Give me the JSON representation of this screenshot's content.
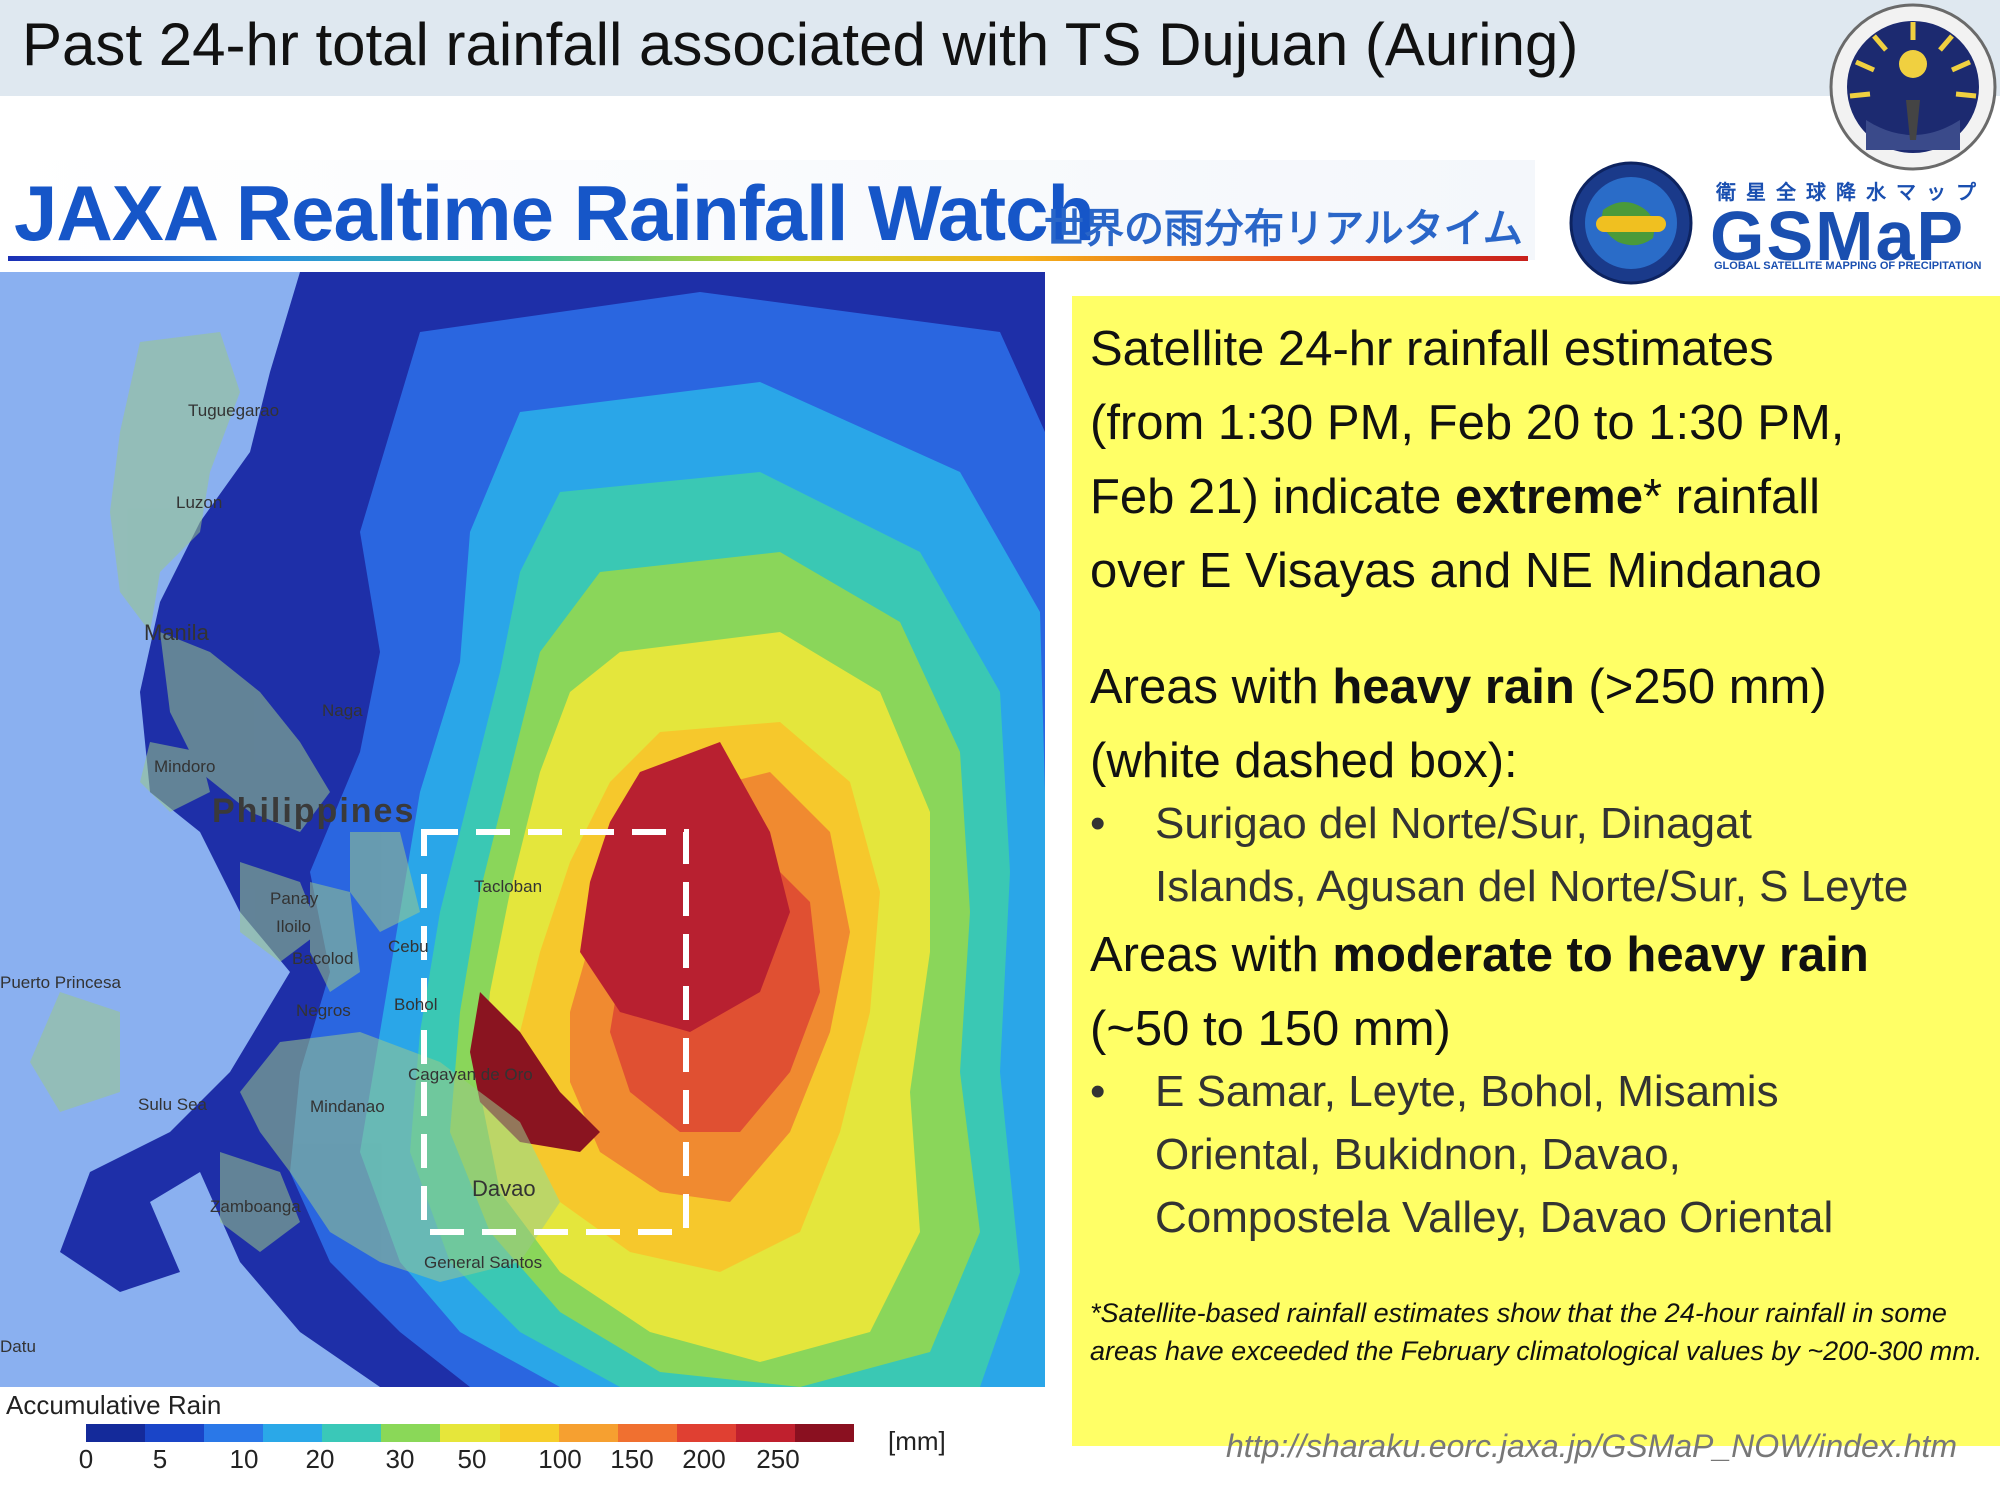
{
  "header": {
    "title": "Past 24-hr total rainfall associated with TS Dujuan (Auring)"
  },
  "jaxa_banner": {
    "title": "JAXA Realtime Rainfall Watch",
    "japanese_title": "世界の雨分布リアルタイム"
  },
  "gsmap_logo": {
    "japanese_caption": "衛星全球降水マップ",
    "wordmark": "GSMaP",
    "subtitle": "GLOBAL SATELLITE MAPPING OF PRECIPITATION"
  },
  "map": {
    "place_labels": [
      "Tuguegarao",
      "Luzon",
      "Manila",
      "Naga",
      "Mindoro",
      "Philippines",
      "Panay",
      "Iloilo",
      "Bacolod",
      "Cebu",
      "Tacloban",
      "Bohol",
      "Negros",
      "Puerto Princesa",
      "Sulu Sea",
      "Mindanao",
      "Cagayan de Oro",
      "Davao",
      "Zamboanga",
      "General Santos",
      "Datu"
    ],
    "box_note": "white dashed box"
  },
  "legend": {
    "title": "Accumulative Rain",
    "ticks": [
      "0",
      "5",
      "10",
      "20",
      "30",
      "50",
      "100",
      "150",
      "200",
      "250"
    ],
    "unit": "[mm]",
    "colors": [
      "#142a9a",
      "#1a45c8",
      "#2a78e8",
      "#2aa8e8",
      "#3ac8b8",
      "#8ad858",
      "#e6e63a",
      "#f6ce2a",
      "#f6a030",
      "#f07030",
      "#e04032",
      "#c0202e",
      "#8a1020"
    ]
  },
  "info": {
    "para1_lines": [
      "Satellite 24-hr rainfall estimates",
      "(from 1:30 PM, Feb 20 to 1:30 PM,",
      "Feb 21) indicate ",
      "extreme",
      "* rainfall",
      "over E Visayas and NE Mindanao"
    ],
    "para2_a": "Areas with ",
    "para2_b": "heavy rain",
    "para2_c": " (>250 mm)",
    "para2_line2": "(white dashed box):",
    "bullet1_lines": [
      "Surigao del Norte/Sur, Dinagat",
      "Islands, Agusan del Norte/Sur, S Leyte"
    ],
    "para3_a": "Areas with ",
    "para3_b": "moderate to heavy rain",
    "para3_line2": "(~50 to 150 mm)",
    "bullet2_lines": [
      "E Samar, Leyte, Bohol, Misamis",
      "Oriental, Bukidnon, Davao,",
      "Compostela Valley, Davao Oriental"
    ],
    "bullet_symbol": "•",
    "footnote": "*Satellite-based rainfall estimates show that the 24-hour rainfall in some areas have exceeded the February climatological values by ~200-300 mm."
  },
  "source_url": "http://sharaku.eorc.jaxa.jp/GSMaP_NOW/index.htm"
}
